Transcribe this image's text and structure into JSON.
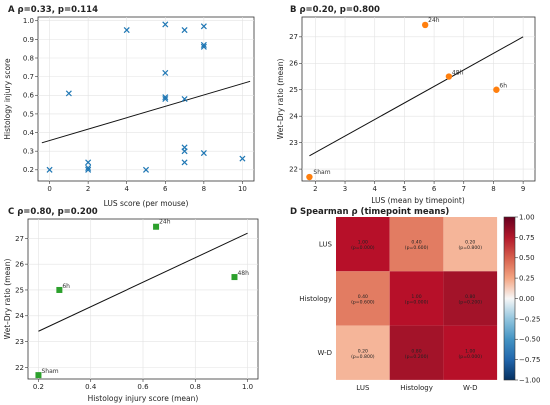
{
  "chart_data": [
    {
      "id": "A",
      "type": "scatter",
      "title": "A  ρ=0.33, p=0.114",
      "xlabel": "LUS score (per mouse)",
      "ylabel": "Histology injury score",
      "xlim": [
        -0.6,
        10.6
      ],
      "ylim": [
        0.14,
        1.02
      ],
      "xticks": [
        0,
        2,
        4,
        6,
        8,
        10
      ],
      "xtick_labels": [
        "0",
        "2",
        "4",
        "6",
        "8",
        "10"
      ],
      "yticks": [
        0.2,
        0.3,
        0.4,
        0.5,
        0.6,
        0.7,
        0.8,
        0.9,
        1.0
      ],
      "ytick_labels": [
        "0.2",
        "0.3",
        "0.4",
        "0.5",
        "0.6",
        "0.7",
        "0.8",
        "0.9",
        "1.0"
      ],
      "grid": true,
      "marker": "x",
      "color": "#1f77b4",
      "points": [
        {
          "x": 0,
          "y": 0.2
        },
        {
          "x": 1,
          "y": 0.61
        },
        {
          "x": 2,
          "y": 0.24
        },
        {
          "x": 2,
          "y": 0.21
        },
        {
          "x": 2,
          "y": 0.2
        },
        {
          "x": 4,
          "y": 0.95
        },
        {
          "x": 5,
          "y": 0.2
        },
        {
          "x": 6,
          "y": 0.98
        },
        {
          "x": 6,
          "y": 0.72
        },
        {
          "x": 6,
          "y": 0.59
        },
        {
          "x": 6,
          "y": 0.58
        },
        {
          "x": 7,
          "y": 0.95
        },
        {
          "x": 7,
          "y": 0.58
        },
        {
          "x": 7,
          "y": 0.32
        },
        {
          "x": 7,
          "y": 0.3
        },
        {
          "x": 7,
          "y": 0.24
        },
        {
          "x": 8,
          "y": 0.97
        },
        {
          "x": 8,
          "y": 0.87
        },
        {
          "x": 8,
          "y": 0.86
        },
        {
          "x": 8,
          "y": 0.29
        },
        {
          "x": 10,
          "y": 0.26
        }
      ],
      "fit_line": {
        "x": [
          -0.4,
          10.4
        ],
        "y": [
          0.345,
          0.675
        ]
      }
    },
    {
      "id": "B",
      "type": "scatter",
      "title": "B  ρ=0.20, p=0.800",
      "xlabel": "LUS (mean by timepoint)",
      "ylabel": "Wet–Dry ratio (mean)",
      "xlim": [
        1.55,
        9.4
      ],
      "ylim": [
        21.55,
        27.75
      ],
      "xticks": [
        2,
        3,
        4,
        5,
        6,
        7,
        8,
        9
      ],
      "xtick_labels": [
        "2",
        "3",
        "4",
        "5",
        "6",
        "7",
        "8",
        "9"
      ],
      "yticks": [
        22,
        23,
        24,
        25,
        26,
        27
      ],
      "ytick_labels": [
        "22",
        "23",
        "24",
        "25",
        "26",
        "27"
      ],
      "grid": true,
      "marker": "o",
      "color": "#ff7f0e",
      "points": [
        {
          "label": "Sham",
          "x": 1.8,
          "y": 21.7
        },
        {
          "label": "24h",
          "x": 5.7,
          "y": 27.45
        },
        {
          "label": "48h",
          "x": 6.5,
          "y": 25.5
        },
        {
          "label": "6h",
          "x": 8.1,
          "y": 25.0
        }
      ],
      "fit_line": {
        "x": [
          1.8,
          9.0
        ],
        "y": [
          22.5,
          27.0
        ]
      }
    },
    {
      "id": "C",
      "type": "scatter",
      "title": "C  ρ=0.80, p=0.200",
      "xlabel": "Histology injury score (mean)",
      "ylabel": "Wet–Dry ratio (mean)",
      "xlim": [
        0.16,
        1.04
      ],
      "ylim": [
        21.55,
        27.75
      ],
      "xticks": [
        0.2,
        0.4,
        0.6,
        0.8,
        1.0
      ],
      "xtick_labels": [
        "0.2",
        "0.4",
        "0.6",
        "0.8",
        "1.0"
      ],
      "yticks": [
        22,
        23,
        24,
        25,
        26,
        27
      ],
      "ytick_labels": [
        "22",
        "23",
        "24",
        "25",
        "26",
        "27"
      ],
      "grid": true,
      "marker": "s",
      "color": "#2ca02c",
      "points": [
        {
          "label": "Sham",
          "x": 0.2,
          "y": 21.7
        },
        {
          "label": "6h",
          "x": 0.28,
          "y": 25.0
        },
        {
          "label": "24h",
          "x": 0.65,
          "y": 27.45
        },
        {
          "label": "48h",
          "x": 0.95,
          "y": 25.5
        }
      ],
      "fit_line": {
        "x": [
          0.2,
          1.0
        ],
        "y": [
          23.4,
          27.2
        ]
      }
    },
    {
      "id": "D",
      "type": "heatmap",
      "title": "D  Spearman ρ (timepoint means)",
      "labels": [
        "LUS",
        "Histology",
        "W-D"
      ],
      "cells": [
        [
          {
            "v": 1.0,
            "t1": "1.00",
            "t2": "(p=0.000)"
          },
          {
            "v": 0.4,
            "t1": "0.40",
            "t2": "(p=0.600)"
          },
          {
            "v": 0.2,
            "t1": "0.20",
            "t2": "(p=0.800)"
          }
        ],
        [
          {
            "v": 0.4,
            "t1": "0.40",
            "t2": "(p=0.600)"
          },
          {
            "v": 1.0,
            "t1": "1.00",
            "t2": "(p=0.000)"
          },
          {
            "v": 0.8,
            "t1": "0.80",
            "t2": "(p=0.200)"
          }
        ],
        [
          {
            "v": 0.2,
            "t1": "0.20",
            "t2": "(p=0.800)"
          },
          {
            "v": 0.8,
            "t1": "0.80",
            "t2": "(p=0.200)"
          },
          {
            "v": 1.0,
            "t1": "1.00",
            "t2": "(p=0.000)"
          }
        ]
      ],
      "vmin": -1.0,
      "vmax": 1.0,
      "colorbar_ticks": [
        1.0,
        0.75,
        0.5,
        0.25,
        0.0,
        -0.25,
        -0.5,
        -0.75,
        -1.0
      ],
      "colorbar_tick_labels": [
        "1.00",
        "0.75",
        "0.50",
        "0.25",
        "0.00",
        "−0.25",
        "−0.50",
        "−0.75",
        "−1.00"
      ],
      "colormap": "RdBu_r"
    }
  ]
}
